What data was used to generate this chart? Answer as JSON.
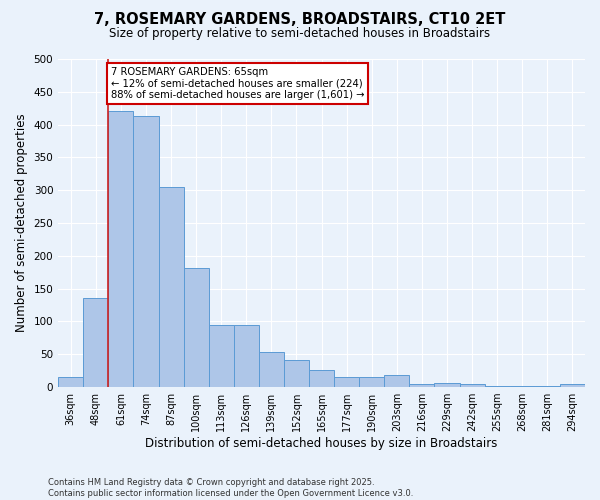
{
  "title1": "7, ROSEMARY GARDENS, BROADSTAIRS, CT10 2ET",
  "title2": "Size of property relative to semi-detached houses in Broadstairs",
  "xlabel": "Distribution of semi-detached houses by size in Broadstairs",
  "ylabel": "Number of semi-detached properties",
  "categories": [
    "36sqm",
    "48sqm",
    "61sqm",
    "74sqm",
    "87sqm",
    "100sqm",
    "113sqm",
    "126sqm",
    "139sqm",
    "152sqm",
    "165sqm",
    "177sqm",
    "190sqm",
    "203sqm",
    "216sqm",
    "229sqm",
    "242sqm",
    "255sqm",
    "268sqm",
    "281sqm",
    "294sqm"
  ],
  "values": [
    16,
    136,
    420,
    413,
    305,
    181,
    95,
    95,
    54,
    42,
    26,
    16,
    15,
    19,
    5,
    6,
    5,
    1,
    1,
    1,
    4
  ],
  "bar_color": "#aec6e8",
  "bar_edge_color": "#5b9bd5",
  "red_line_x": 2,
  "annotation_text": "7 ROSEMARY GARDENS: 65sqm\n← 12% of semi-detached houses are smaller (224)\n88% of semi-detached houses are larger (1,601) →",
  "annotation_box_color": "#ffffff",
  "annotation_box_edge_color": "#cc0000",
  "ylim": [
    0,
    500
  ],
  "yticks": [
    0,
    50,
    100,
    150,
    200,
    250,
    300,
    350,
    400,
    450,
    500
  ],
  "footnote1": "Contains HM Land Registry data © Crown copyright and database right 2025.",
  "footnote2": "Contains public sector information licensed under the Open Government Licence v3.0.",
  "background_color": "#eaf2fb",
  "grid_color": "#ffffff"
}
